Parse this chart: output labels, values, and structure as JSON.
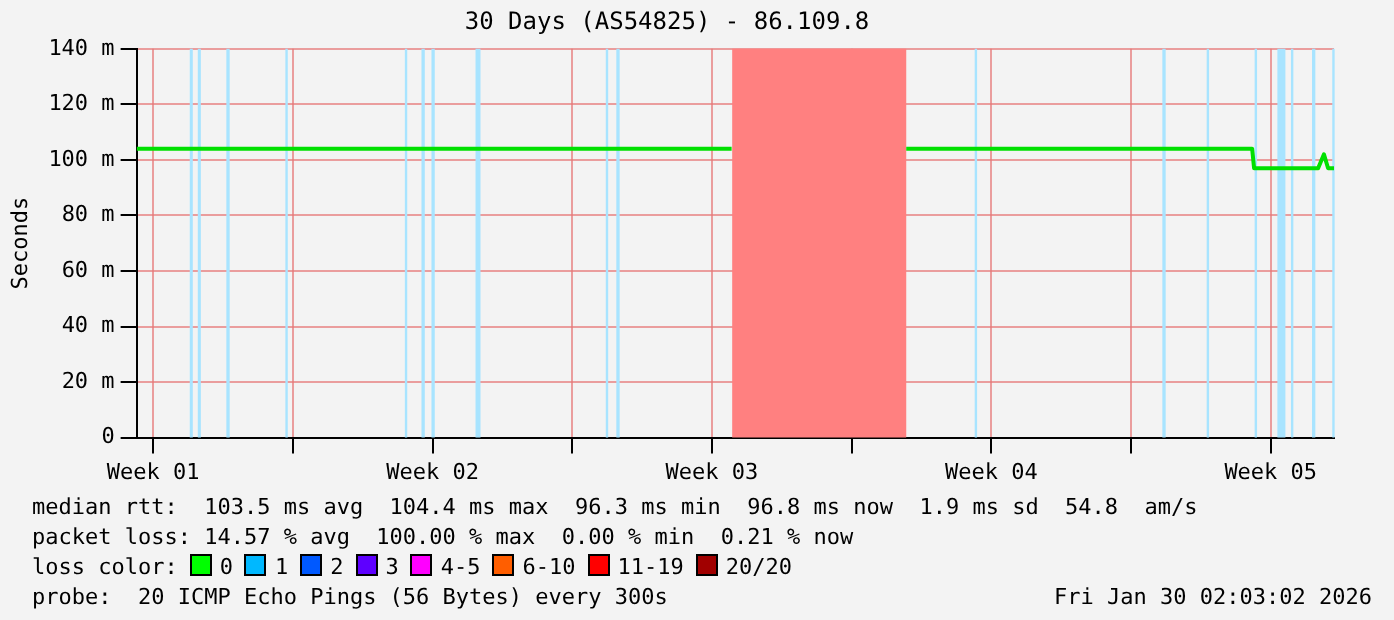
{
  "chart_data": {
    "type": "line",
    "title": "30 Days (AS54825) - 86.109.8",
    "ylabel": "Seconds",
    "xlim": [
      "2025-12-31T02:03",
      "2026-01-30T02:03"
    ],
    "xticks": [
      {
        "value": "2025-12-31T12:00",
        "label": "Week 01"
      },
      {
        "value": "2026-01-04T00:00",
        "label": null
      },
      {
        "value": "2026-01-07T12:00",
        "label": "Week 02"
      },
      {
        "value": "2026-01-11T00:00",
        "label": null
      },
      {
        "value": "2026-01-14T12:00",
        "label": "Week 03"
      },
      {
        "value": "2026-01-18T00:00",
        "label": null
      },
      {
        "value": "2026-01-21T12:00",
        "label": "Week 04"
      },
      {
        "value": "2026-01-25T00:00",
        "label": null
      },
      {
        "value": "2026-01-28T12:00",
        "label": "Week 05"
      }
    ],
    "ylim": [
      0,
      140
    ],
    "yticks": [
      0,
      {
        "value": 20,
        "label": "20 m"
      },
      {
        "value": 40,
        "label": "40 m"
      },
      {
        "value": 60,
        "label": "60 m"
      },
      {
        "value": 80,
        "label": "80 m"
      },
      {
        "value": 100,
        "label": "100 m"
      },
      {
        "value": 120,
        "label": "120 m"
      },
      {
        "value": 140,
        "label": "140 m"
      }
    ],
    "grid": true,
    "legend": false,
    "marker": "none",
    "line_style": "solid",
    "series": [
      {
        "color": "#00e000",
        "x": [
          "2025-12-31T02:03",
          "2026-01-14T23:50",
          "2026-01-15T00:30",
          "2026-01-19T08:50",
          "2026-01-28T00:50",
          "2026-01-28T02:00",
          "2026-01-29T16:30",
          "2026-01-29T20:00",
          "2026-01-29T22:30",
          "2026-01-30T02:03"
        ],
        "values": [
          104,
          104,
          null,
          104,
          104,
          97,
          97,
          102,
          97,
          97
        ]
      }
    ],
    "bands": [
      {
        "axis": "x",
        "from": "2026-01-15T00:10",
        "to": "2026-01-19T08:50",
        "color": "#ff8080"
      },
      {
        "axis": "x",
        "from": "2026-01-01T10:00",
        "to": "2026-01-01T11:50",
        "color": "#a8e4ff"
      },
      {
        "axis": "x",
        "from": "2026-01-01T14:50",
        "to": "2026-01-01T16:40",
        "color": "#a8e4ff"
      },
      {
        "axis": "x",
        "from": "2026-01-02T08:00",
        "to": "2026-01-02T10:00",
        "color": "#a8e4ff"
      },
      {
        "axis": "x",
        "from": "2026-01-03T19:30",
        "to": "2026-01-03T20:30",
        "color": "#a8e4ff"
      },
      {
        "axis": "x",
        "from": "2026-01-06T19:20",
        "to": "2026-01-06T20:20",
        "color": "#a8e4ff"
      },
      {
        "axis": "x",
        "from": "2026-01-07T05:20",
        "to": "2026-01-07T07:20",
        "color": "#a8e4ff"
      },
      {
        "axis": "x",
        "from": "2026-01-07T11:20",
        "to": "2026-01-07T13:20",
        "color": "#a8e4ff"
      },
      {
        "axis": "x",
        "from": "2026-01-08T13:50",
        "to": "2026-01-08T16:50",
        "color": "#a8e4ff"
      },
      {
        "axis": "x",
        "from": "2026-01-11T20:10",
        "to": "2026-01-11T21:10",
        "color": "#a8e4ff"
      },
      {
        "axis": "x",
        "from": "2026-01-12T02:30",
        "to": "2026-01-12T04:30",
        "color": "#a8e4ff"
      },
      {
        "axis": "x",
        "from": "2026-01-21T02:00",
        "to": "2026-01-21T03:00",
        "color": "#a8e4ff"
      },
      {
        "axis": "x",
        "from": "2026-01-25T18:50",
        "to": "2026-01-25T20:50",
        "color": "#a8e4ff"
      },
      {
        "axis": "x",
        "from": "2026-01-26T21:30",
        "to": "2026-01-26T22:30",
        "color": "#a8e4ff"
      },
      {
        "axis": "x",
        "from": "2026-01-28T02:20",
        "to": "2026-01-28T03:20",
        "color": "#a8e4ff"
      },
      {
        "axis": "x",
        "from": "2026-01-28T16:00",
        "to": "2026-01-28T20:50",
        "color": "#a8e4ff"
      },
      {
        "axis": "x",
        "from": "2026-01-29T00:10",
        "to": "2026-01-29T01:10",
        "color": "#a8e4ff"
      },
      {
        "axis": "x",
        "from": "2026-01-29T12:50",
        "to": "2026-01-29T14:50",
        "color": "#a8e4ff"
      },
      {
        "axis": "x",
        "from": "2026-01-30T01:00",
        "to": "2026-01-30T02:03",
        "color": "#a8e4ff"
      }
    ],
    "annotations": [
      "median rtt:  103.5 ms avg  104.4 ms max  96.3 ms min  96.8 ms now  1.9 ms sd  54.8  am/s",
      "packet loss: 14.57 % avg  100.00 % max  0.00 % min  0.21 % now",
      "loss color:",
      "0",
      "1",
      "2",
      "3",
      "4-5",
      "6-10",
      "11-19",
      "20/20",
      "probe:  20 ICMP Echo Pings (56 Bytes) every 300s",
      "Fri Jan 30 02:03:02 2026"
    ]
  }
}
